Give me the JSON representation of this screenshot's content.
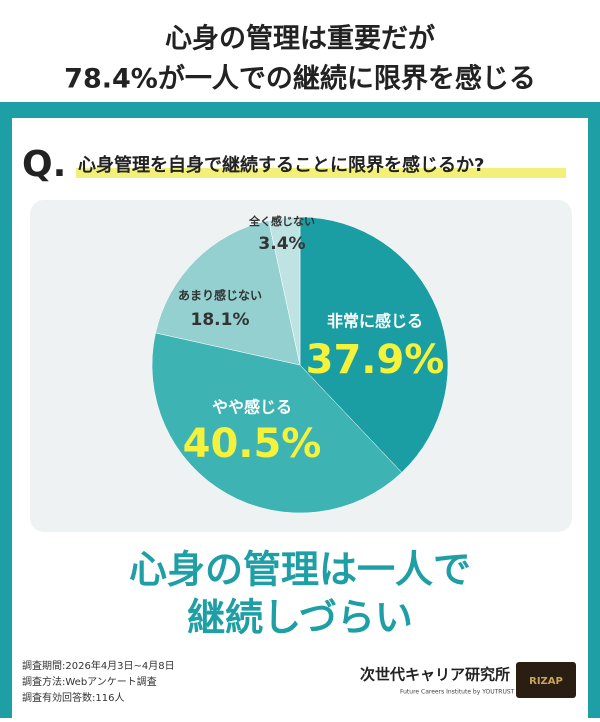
{
  "chart_data": {
    "type": "pie",
    "title": [
      "心身の管理は重要だが",
      "78.4%が一人での継続に限界を感じる"
    ],
    "question_mark": "Q.",
    "question": "心身管理を自身で継続することに限界を感じるか?",
    "categories": [
      "非常に感じる",
      "やや感じる",
      "あまり感じない",
      "全く感じない"
    ],
    "values": [
      37.9,
      40.5,
      18.1,
      3.4
    ],
    "value_labels": [
      "37.9%",
      "40.5%",
      "18.1%",
      "3.4%"
    ],
    "colors": [
      "#1a9ea4",
      "#3eb3b3",
      "#94d0d0",
      "#bfe3e2"
    ],
    "conclusion": [
      "心身の管理は一人で",
      "継続しづらい"
    ],
    "notes": [
      "調査期間:2026年4月3日~4月8日",
      "調査方法:Webアンケート調査",
      "調査有効回答数:116人"
    ],
    "logo": "次世代キャリア研究所",
    "logo_sub": "Future Careers Institute by YOUTRUST",
    "logo2": "RIZAP"
  }
}
